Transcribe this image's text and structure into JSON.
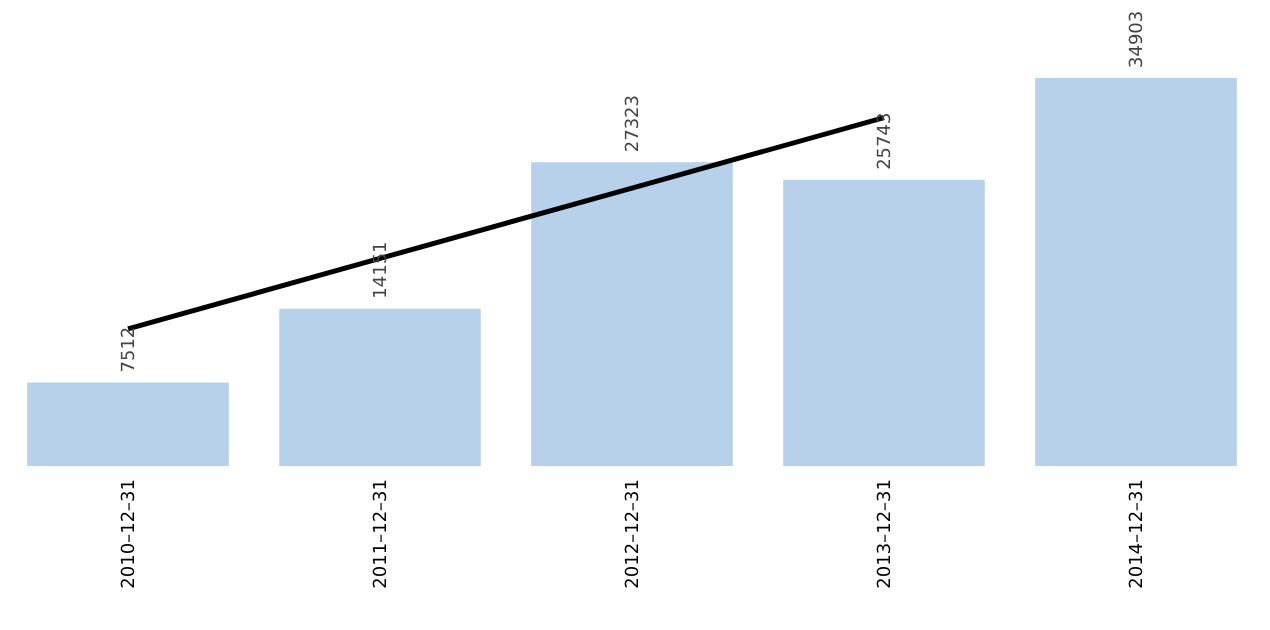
{
  "chart_data": {
    "type": "bar",
    "categories": [
      "2010–12–31",
      "2011–12–31",
      "2012–12–31",
      "2013–12–31",
      "2014–12–31"
    ],
    "series": [
      {
        "color": "#b8d1ea",
        "values": [
          7512,
          14151,
          27323,
          25743,
          34903
        ],
        "value_labels": [
          "7512",
          "14151",
          "27323",
          "25743",
          "34903"
        ]
      },
      {
        "type": "line",
        "color": "#000000",
        "values": [
          12330,
          18670,
          25000,
          31340,
          null
        ]
      }
    ],
    "tick_labels": "x",
    "grid": false
  }
}
